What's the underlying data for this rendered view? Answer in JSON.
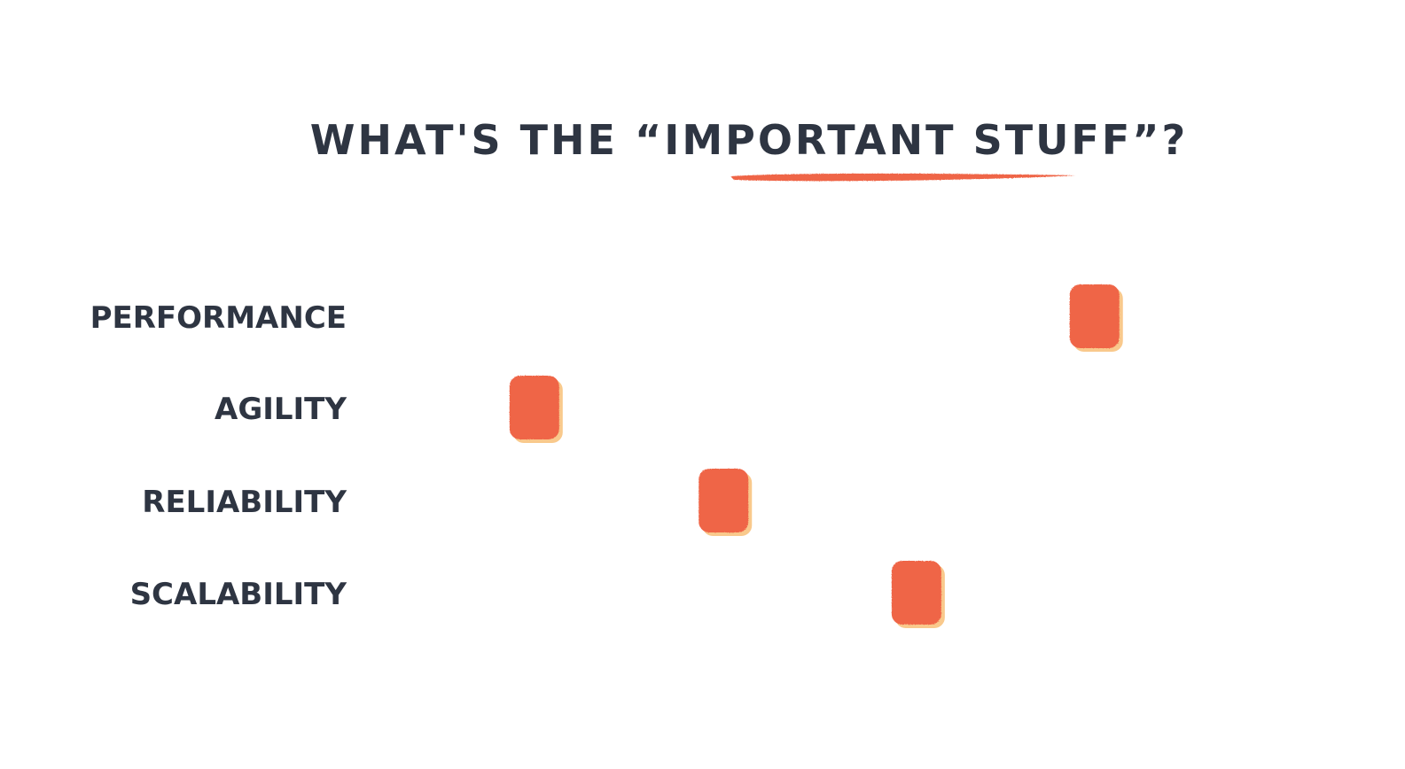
{
  "title": "WHAT'S THE “IMPORTANT STUFF”?",
  "colors": {
    "ink": "#2e3542",
    "accent": "#ef6547",
    "marker_shadow": "#f9c98c",
    "background": "#ffffff"
  },
  "scale": {
    "ticks": 5,
    "min": 0,
    "max": 1
  },
  "rows": [
    {
      "label": "PERFORMANCE",
      "value": 0.885
    },
    {
      "label": "AGILITY",
      "value": 0.13
    },
    {
      "label": "RELIABILITY",
      "value": 0.385
    },
    {
      "label": "SCALABILITY",
      "value": 0.645
    }
  ]
}
